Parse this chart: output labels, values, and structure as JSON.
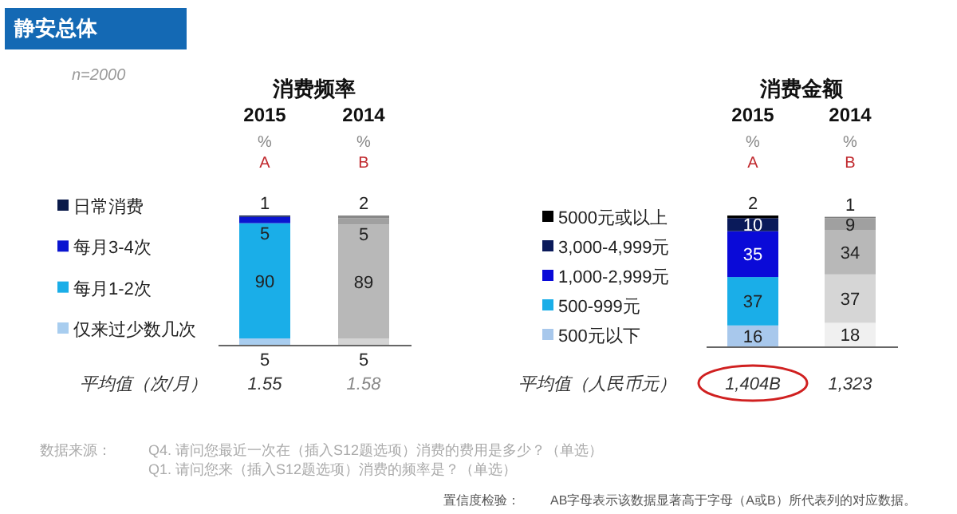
{
  "chart_data": [
    {
      "type": "bar",
      "stacked": true,
      "data_labels": true,
      "legend": "left",
      "title": "消费频率",
      "categories": [
        "2015",
        "2014"
      ],
      "series": [
        {
          "name": "仅来过少数几次",
          "color": "#a8cdef",
          "colors": [
            "#a8cdef",
            "#d4d4d4"
          ],
          "values": [
            5,
            5
          ]
        },
        {
          "name": "每月1-2次",
          "color": "#1aaee8",
          "colors": [
            "#1aaee8",
            "#b8b8b8"
          ],
          "values": [
            90,
            89
          ]
        },
        {
          "name": "每月3-4次",
          "color": "#0a14d0",
          "colors": [
            "#0a14d0",
            "#a0a0a0"
          ],
          "values": [
            5,
            5
          ]
        },
        {
          "name": "日常消费",
          "color": "#0a1a4a",
          "colors": [
            "#0a1a4a",
            "#888888"
          ],
          "values": [
            1,
            2
          ]
        }
      ],
      "annotations": [
        "静安总体",
        "n=2000",
        "%",
        "%",
        "A",
        "B",
        "平均值（次/月）",
        "1.55",
        "1.58",
        "数据来源：",
        "Q4. 请问您最近一次在（插入S12题选项）消费的费用是多少？（单选）",
        "Q1. 请问您来（插入S12题选项）消费的频率是？（单选）",
        "置信度检验：",
        "AB字母表示该数据显著高于字母（A或B）所代表列的对应数据。"
      ]
    },
    {
      "type": "bar",
      "stacked": true,
      "data_labels": true,
      "legend": "left",
      "title": "消费金额",
      "categories": [
        "2015",
        "2014"
      ],
      "series": [
        {
          "name": "500元以下",
          "color": "#a8c8ec",
          "colors": [
            "#a8c8ec",
            "#f0f0f0"
          ],
          "values": [
            16,
            18
          ]
        },
        {
          "name": "500-999元",
          "color": "#1aaee8",
          "colors": [
            "#1aaee8",
            "#d6d6d6"
          ],
          "values": [
            37,
            37
          ]
        },
        {
          "name": "1,000-2,999元",
          "color": "#0a0ad8",
          "colors": [
            "#0a0ad8",
            "#b8b8b8"
          ],
          "values": [
            35,
            34
          ]
        },
        {
          "name": "3,000-4,999元",
          "color": "#0a1a5a",
          "colors": [
            "#0a1a5a",
            "#a0a0a0"
          ],
          "values": [
            10,
            9
          ]
        },
        {
          "name": "5000元或以上",
          "color": "#000000",
          "colors": [
            "#000000",
            "#808080"
          ],
          "values": [
            2,
            1
          ]
        }
      ],
      "annotations": [
        "%",
        "%",
        "A",
        "B",
        "平均值（人民币元）",
        "1,404B",
        "1,323"
      ]
    }
  ]
}
